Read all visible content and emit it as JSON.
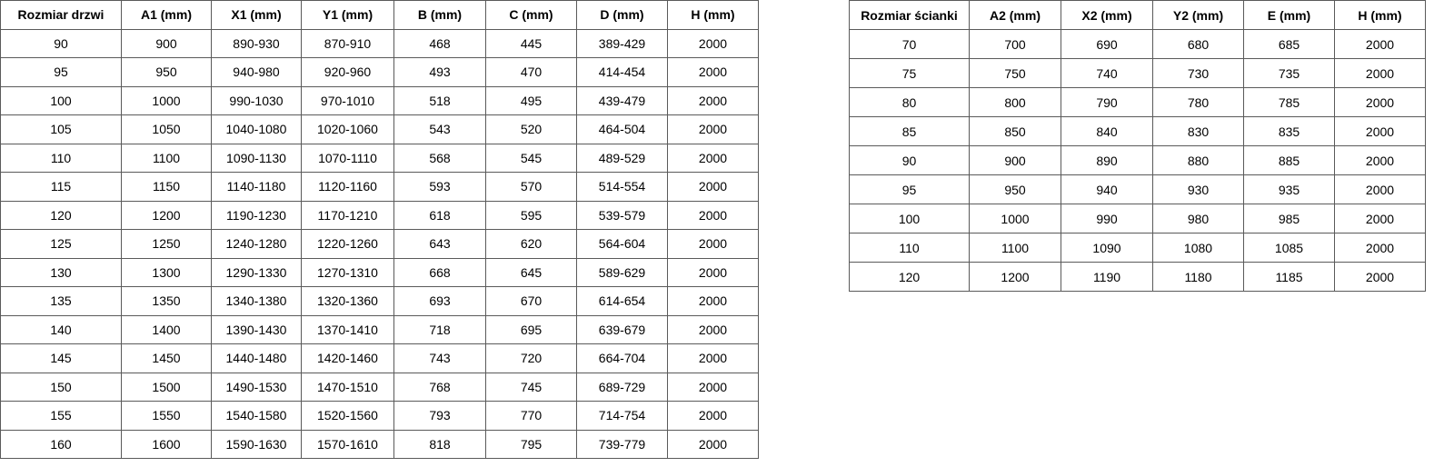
{
  "doors_table": {
    "headers": [
      "Rozmiar drzwi",
      "A1 (mm)",
      "X1 (mm)",
      "Y1 (mm)",
      "B (mm)",
      "C (mm)",
      "D (mm)",
      "H (mm)"
    ],
    "rows": [
      [
        "90",
        "900",
        "890-930",
        "870-910",
        "468",
        "445",
        "389-429",
        "2000"
      ],
      [
        "95",
        "950",
        "940-980",
        "920-960",
        "493",
        "470",
        "414-454",
        "2000"
      ],
      [
        "100",
        "1000",
        "990-1030",
        "970-1010",
        "518",
        "495",
        "439-479",
        "2000"
      ],
      [
        "105",
        "1050",
        "1040-1080",
        "1020-1060",
        "543",
        "520",
        "464-504",
        "2000"
      ],
      [
        "110",
        "1100",
        "1090-1130",
        "1070-1110",
        "568",
        "545",
        "489-529",
        "2000"
      ],
      [
        "115",
        "1150",
        "1140-1180",
        "1120-1160",
        "593",
        "570",
        "514-554",
        "2000"
      ],
      [
        "120",
        "1200",
        "1190-1230",
        "1170-1210",
        "618",
        "595",
        "539-579",
        "2000"
      ],
      [
        "125",
        "1250",
        "1240-1280",
        "1220-1260",
        "643",
        "620",
        "564-604",
        "2000"
      ],
      [
        "130",
        "1300",
        "1290-1330",
        "1270-1310",
        "668",
        "645",
        "589-629",
        "2000"
      ],
      [
        "135",
        "1350",
        "1340-1380",
        "1320-1360",
        "693",
        "670",
        "614-654",
        "2000"
      ],
      [
        "140",
        "1400",
        "1390-1430",
        "1370-1410",
        "718",
        "695",
        "639-679",
        "2000"
      ],
      [
        "145",
        "1450",
        "1440-1480",
        "1420-1460",
        "743",
        "720",
        "664-704",
        "2000"
      ],
      [
        "150",
        "1500",
        "1490-1530",
        "1470-1510",
        "768",
        "745",
        "689-729",
        "2000"
      ],
      [
        "155",
        "1550",
        "1540-1580",
        "1520-1560",
        "793",
        "770",
        "714-754",
        "2000"
      ],
      [
        "160",
        "1600",
        "1590-1630",
        "1570-1610",
        "818",
        "795",
        "739-779",
        "2000"
      ]
    ]
  },
  "wall_table": {
    "headers": [
      "Rozmiar ścianki",
      "A2 (mm)",
      "X2 (mm)",
      "Y2 (mm)",
      "E (mm)",
      "H (mm)"
    ],
    "rows": [
      [
        "70",
        "700",
        "690",
        "680",
        "685",
        "2000"
      ],
      [
        "75",
        "750",
        "740",
        "730",
        "735",
        "2000"
      ],
      [
        "80",
        "800",
        "790",
        "780",
        "785",
        "2000"
      ],
      [
        "85",
        "850",
        "840",
        "830",
        "835",
        "2000"
      ],
      [
        "90",
        "900",
        "890",
        "880",
        "885",
        "2000"
      ],
      [
        "95",
        "950",
        "940",
        "930",
        "935",
        "2000"
      ],
      [
        "100",
        "1000",
        "990",
        "980",
        "985",
        "2000"
      ],
      [
        "110",
        "1100",
        "1090",
        "1080",
        "1085",
        "2000"
      ],
      [
        "120",
        "1200",
        "1190",
        "1180",
        "1185",
        "2000"
      ]
    ]
  }
}
